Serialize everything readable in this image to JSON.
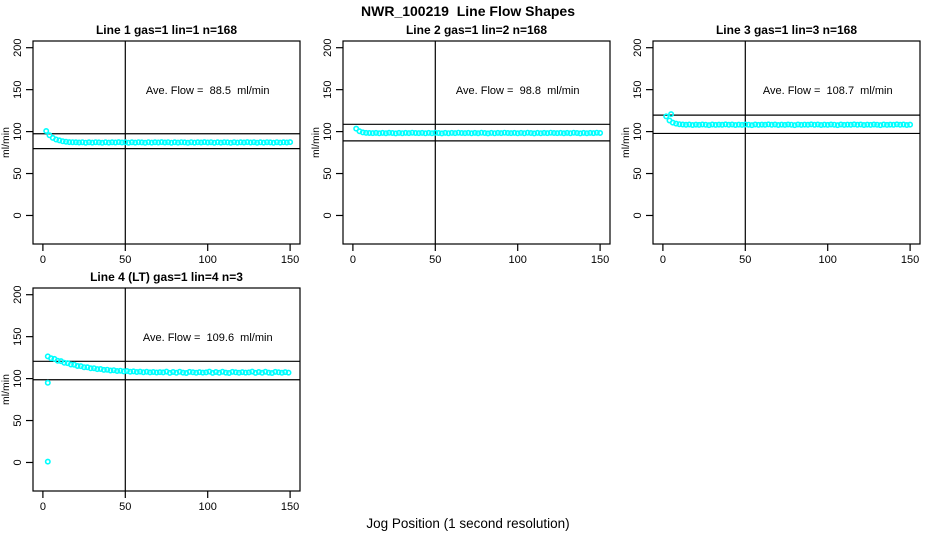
{
  "page": {
    "title": "NWR_100219  Line Flow Shapes",
    "xlabel": "Jog Position (1 second resolution)",
    "background": "#ffffff"
  },
  "colors": {
    "points": "#00ffff",
    "lines": "#000000",
    "box": "#000000",
    "text": "#000000"
  },
  "axes": {
    "x_range": [
      -6,
      156
    ],
    "y_range": [
      -34,
      208
    ],
    "x_ticks": [
      0,
      50,
      100,
      150
    ],
    "y_ticks": [
      0,
      50,
      100,
      150,
      200
    ],
    "y_label": "ml/min"
  },
  "chart_data": [
    {
      "type": "scatter",
      "title": "Line 1 gas=1 lin=1 n=168",
      "annotation": "Ave. Flow =  88.5  ml/min",
      "ave_flow_ml_min": 88.5,
      "n": 168,
      "annotation_xy": [
        100,
        145
      ],
      "ref_line_x": 50,
      "ref_lines_y": [
        97.4,
        79.7
      ],
      "series": {
        "start_x": 2,
        "step_x": 2,
        "y": [
          100.7,
          95.6,
          92.5,
          90.6,
          89.5,
          88.6,
          87.9,
          87.5,
          87.3,
          87.2,
          87.0,
          87.3,
          86.8,
          87.2,
          86.9,
          87.4,
          87.1,
          86.7,
          87.3,
          86.9,
          87.2,
          87.0,
          87.5,
          87.0,
          87.3,
          86.8,
          87.2,
          86.9,
          87.4,
          87.1,
          86.7,
          87.3,
          86.9,
          87.2,
          87.0,
          87.5,
          87.0,
          87.3,
          86.8,
          87.2,
          86.9,
          87.4,
          87.1,
          86.7,
          87.3,
          86.9,
          87.2,
          87.0,
          87.5,
          87.0,
          87.3,
          86.8,
          87.2,
          86.9,
          87.4,
          87.1,
          86.7,
          87.3,
          86.9,
          87.2,
          87.0,
          87.5,
          87.0,
          87.3,
          86.8,
          87.2,
          86.9,
          87.4,
          87.1,
          86.7,
          87.3,
          86.9,
          87.2,
          87.0,
          87.5
        ]
      },
      "extra_points": []
    },
    {
      "type": "scatter",
      "title": "Line 2 gas=1 lin=2 n=168",
      "annotation": "Ave. Flow =  98.8  ml/min",
      "ave_flow_ml_min": 98.8,
      "n": 168,
      "annotation_xy": [
        100,
        145
      ],
      "ref_line_x": 50,
      "ref_lines_y": [
        108.7,
        88.9
      ],
      "series": {
        "start_x": 2,
        "step_x": 2,
        "y": [
          103.6,
          100.3,
          99.0,
          98.5,
          98.3,
          98.2,
          98.5,
          98.0,
          98.4,
          98.1,
          98.6,
          98.3,
          97.9,
          98.5,
          98.1,
          98.4,
          98.2,
          98.7,
          98.3,
          98.2,
          98.5,
          98.0,
          98.4,
          98.1,
          98.6,
          98.3,
          97.9,
          98.5,
          98.1,
          98.4,
          98.2,
          98.7,
          98.3,
          98.2,
          98.5,
          98.0,
          98.4,
          98.1,
          98.6,
          98.3,
          97.9,
          98.5,
          98.1,
          98.4,
          98.2,
          98.7,
          98.3,
          98.2,
          98.5,
          98.0,
          98.4,
          98.1,
          98.6,
          98.3,
          97.9,
          98.5,
          98.1,
          98.4,
          98.2,
          98.7,
          98.3,
          98.2,
          98.5,
          98.0,
          98.4,
          98.1,
          98.6,
          98.3,
          97.9,
          98.5,
          98.1,
          98.4,
          98.2,
          98.7,
          98.3
        ]
      },
      "extra_points": []
    },
    {
      "type": "scatter",
      "title": "Line 3 gas=1 lin=3 n=168",
      "annotation": "Ave. Flow =  108.7  ml/min",
      "ave_flow_ml_min": 108.7,
      "n": 168,
      "annotation_xy": [
        100,
        145
      ],
      "ref_line_x": 50,
      "ref_lines_y": [
        119.6,
        97.8
      ],
      "series": {
        "start_x": 2,
        "step_x": 2,
        "y": [
          118.1,
          113.2,
          110.7,
          109.5,
          108.8,
          108.5,
          108.1,
          108.4,
          107.9,
          108.3,
          108.0,
          108.5,
          108.2,
          107.8,
          108.4,
          108.0,
          108.3,
          108.1,
          108.6,
          108.1,
          108.4,
          107.9,
          108.3,
          108.0,
          108.5,
          108.2,
          107.8,
          108.4,
          108.0,
          108.3,
          108.1,
          108.6,
          108.1,
          108.4,
          107.9,
          108.3,
          108.0,
          108.5,
          108.2,
          107.8,
          108.4,
          108.0,
          108.3,
          108.1,
          108.6,
          108.1,
          108.4,
          107.9,
          108.3,
          108.0,
          108.5,
          108.2,
          107.8,
          108.4,
          108.0,
          108.3,
          108.1,
          108.6,
          108.1,
          108.4,
          107.9,
          108.3,
          108.0,
          108.5,
          108.2,
          107.8,
          108.4,
          108.0,
          108.3,
          108.1,
          108.6,
          108.1,
          108.4,
          107.9,
          108.3
        ]
      },
      "extra_points": [
        [
          5,
          120.8
        ]
      ]
    },
    {
      "type": "scatter",
      "title": "Line 4 (LT) gas=1 lin=4 n=3",
      "annotation": "Ave. Flow =  109.6  ml/min",
      "ave_flow_ml_min": 109.6,
      "n": 3,
      "annotation_xy": [
        100,
        145
      ],
      "ref_line_x": 50,
      "ref_lines_y": [
        120.6,
        98.6
      ],
      "series": {
        "start_x": 3,
        "step_x": 2,
        "y": [
          126.5,
          124.2,
          123.5,
          121.2,
          120.8,
          118.8,
          118.5,
          116.8,
          116.6,
          115.0,
          114.9,
          113.6,
          113.5,
          112.3,
          112.4,
          111.3,
          111.4,
          110.4,
          110.6,
          109.7,
          110.0,
          109.1,
          109.4,
          108.6,
          109.0,
          108.2,
          108.6,
          107.9,
          108.3,
          107.6,
          108.1,
          107.4,
          107.9,
          107.3,
          107.8,
          107.4,
          108.3,
          106.8,
          107.9,
          106.9,
          108.1,
          107.2,
          106.7,
          108.0,
          107.5,
          106.9,
          107.8,
          107.1,
          107.4,
          108.3,
          106.8,
          107.9,
          106.9,
          108.1,
          107.2,
          106.7,
          108.0,
          107.5,
          106.9,
          107.8,
          107.1,
          107.4,
          108.3,
          106.8,
          107.9,
          106.9,
          108.1,
          107.2,
          106.7,
          108.0,
          107.5,
          106.9,
          107.8,
          107.1
        ]
      },
      "extra_points": [
        [
          3,
          95.0
        ],
        [
          3,
          1.0
        ]
      ]
    }
  ]
}
